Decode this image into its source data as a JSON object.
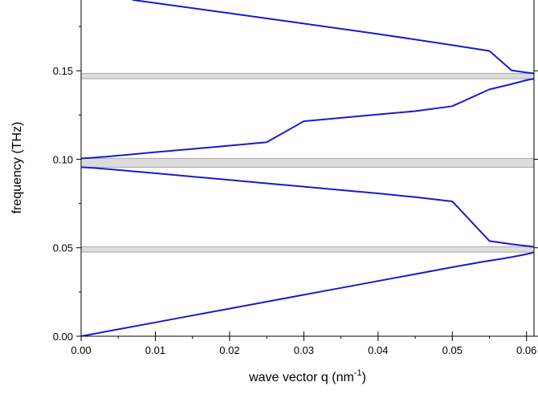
{
  "chart_data": {
    "type": "line",
    "title": "",
    "xlabel": {
      "main": "wave vector q (nm",
      "sup": "-1",
      "tail": ")"
    },
    "ylabel": "frequency (THz)",
    "xlim": [
      0,
      0.061
    ],
    "ylim": [
      0,
      0.19
    ],
    "xticks": [
      "0.00",
      "0.01",
      "0.02",
      "0.03",
      "0.04",
      "0.05",
      "0.06"
    ],
    "yticks": [
      "0.00",
      "0.05",
      "0.10",
      "0.15"
    ],
    "grid": false,
    "legend": "none",
    "colors": {
      "line": "#1a1acc",
      "gap_fill": "#dcdcdc",
      "gap_edge": "#a8a8a8",
      "axes": "#000000"
    },
    "band_gaps": [
      {
        "from": 0.0475,
        "to": 0.0505
      },
      {
        "from": 0.0955,
        "to": 0.1005
      },
      {
        "from": 0.1455,
        "to": 0.1485
      }
    ],
    "series": [
      {
        "x": [
          0.0,
          0.005,
          0.01,
          0.015,
          0.02,
          0.025,
          0.03,
          0.035,
          0.04,
          0.045,
          0.05,
          0.054,
          0.057,
          0.059,
          0.0605,
          0.061
        ],
        "y": [
          0.0,
          0.0039,
          0.0078,
          0.0117,
          0.0156,
          0.0195,
          0.0234,
          0.0273,
          0.0312,
          0.0351,
          0.039,
          0.042,
          0.044,
          0.0455,
          0.0468,
          0.0475
        ]
      },
      {
        "x": [
          0.0,
          0.001,
          0.002,
          0.004,
          0.007,
          0.01,
          0.015,
          0.02,
          0.025,
          0.03,
          0.035,
          0.04,
          0.045,
          0.05,
          0.055,
          0.058,
          0.06,
          0.061
        ],
        "y": [
          0.0955,
          0.0953,
          0.095,
          0.0943,
          0.0932,
          0.0921,
          0.0902,
          0.0883,
          0.0864,
          0.0845,
          0.0826,
          0.0807,
          0.0786,
          0.0762,
          0.0538,
          0.052,
          0.051,
          0.0505
        ]
      },
      {
        "x": [
          0.0,
          0.001,
          0.002,
          0.004,
          0.007,
          0.01,
          0.015,
          0.02,
          0.025,
          0.03,
          0.035,
          0.04,
          0.045,
          0.05,
          0.055,
          0.058,
          0.06,
          0.061
        ],
        "y": [
          0.1005,
          0.1007,
          0.101,
          0.1017,
          0.1028,
          0.104,
          0.1058,
          0.1077,
          0.1096,
          0.1215,
          0.1234,
          0.1253,
          0.1272,
          0.13,
          0.1395,
          0.1425,
          0.1447,
          0.1455
        ]
      },
      {
        "x": [
          0.007,
          0.01,
          0.02,
          0.03,
          0.04,
          0.05,
          0.055,
          0.058,
          0.06,
          0.061
        ],
        "y": [
          0.19,
          0.1883,
          0.1825,
          0.1767,
          0.1708,
          0.1645,
          0.1612,
          0.1502,
          0.149,
          0.1485
        ]
      }
    ]
  }
}
